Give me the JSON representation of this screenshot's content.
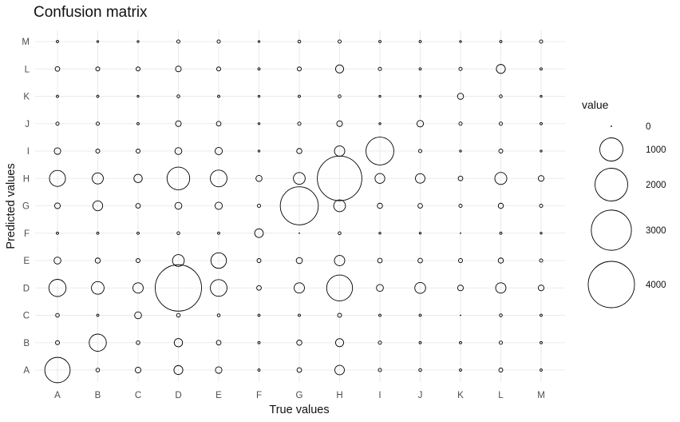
{
  "chart_data": {
    "type": "scatter",
    "title": "Confusion matrix",
    "xlabel": "True values",
    "ylabel": "Predicted values",
    "x_categories": [
      "A",
      "B",
      "C",
      "D",
      "E",
      "F",
      "G",
      "H",
      "I",
      "J",
      "K",
      "L",
      "M"
    ],
    "y_categories": [
      "A",
      "B",
      "C",
      "D",
      "E",
      "F",
      "G",
      "H",
      "I",
      "J",
      "K",
      "L",
      "M"
    ],
    "size_max_value": 4000,
    "grid": true,
    "legend": {
      "title": "value",
      "position": "right",
      "breaks": [
        {
          "value": 0,
          "label": "0"
        },
        {
          "value": 1000,
          "label": "1000"
        },
        {
          "value": 2000,
          "label": "2000"
        },
        {
          "value": 3000,
          "label": "3000"
        },
        {
          "value": 4000,
          "label": "4000"
        }
      ]
    },
    "values": [
      [
        1200,
        25,
        60,
        150,
        80,
        10,
        40,
        170,
        20,
        15,
        10,
        30,
        10
      ],
      [
        30,
        550,
        25,
        130,
        40,
        10,
        50,
        120,
        20,
        10,
        10,
        20,
        10
      ],
      [
        25,
        10,
        90,
        25,
        15,
        10,
        10,
        30,
        10,
        10,
        0,
        15,
        10
      ],
      [
        550,
        300,
        200,
        4000,
        520,
        40,
        200,
        1250,
        90,
        220,
        60,
        200,
        60
      ],
      [
        90,
        50,
        30,
        260,
        450,
        30,
        70,
        200,
        40,
        40,
        30,
        50,
        20
      ],
      [
        10,
        10,
        10,
        15,
        10,
        140,
        0,
        15,
        5,
        5,
        0,
        10,
        5
      ],
      [
        60,
        180,
        40,
        90,
        100,
        20,
        2700,
        260,
        50,
        40,
        20,
        50,
        20
      ],
      [
        480,
        230,
        130,
        960,
        520,
        70,
        260,
        3700,
        180,
        170,
        40,
        270,
        60
      ],
      [
        80,
        30,
        30,
        90,
        100,
        5,
        50,
        200,
        1450,
        20,
        5,
        30,
        5
      ],
      [
        20,
        20,
        10,
        60,
        40,
        5,
        20,
        60,
        5,
        80,
        20,
        20,
        10
      ],
      [
        10,
        10,
        5,
        15,
        10,
        5,
        10,
        15,
        5,
        5,
        70,
        15,
        5
      ],
      [
        40,
        30,
        30,
        60,
        30,
        10,
        30,
        120,
        20,
        10,
        20,
        150,
        10
      ],
      [
        10,
        5,
        5,
        20,
        20,
        5,
        15,
        20,
        10,
        10,
        5,
        10,
        20
      ]
    ]
  }
}
